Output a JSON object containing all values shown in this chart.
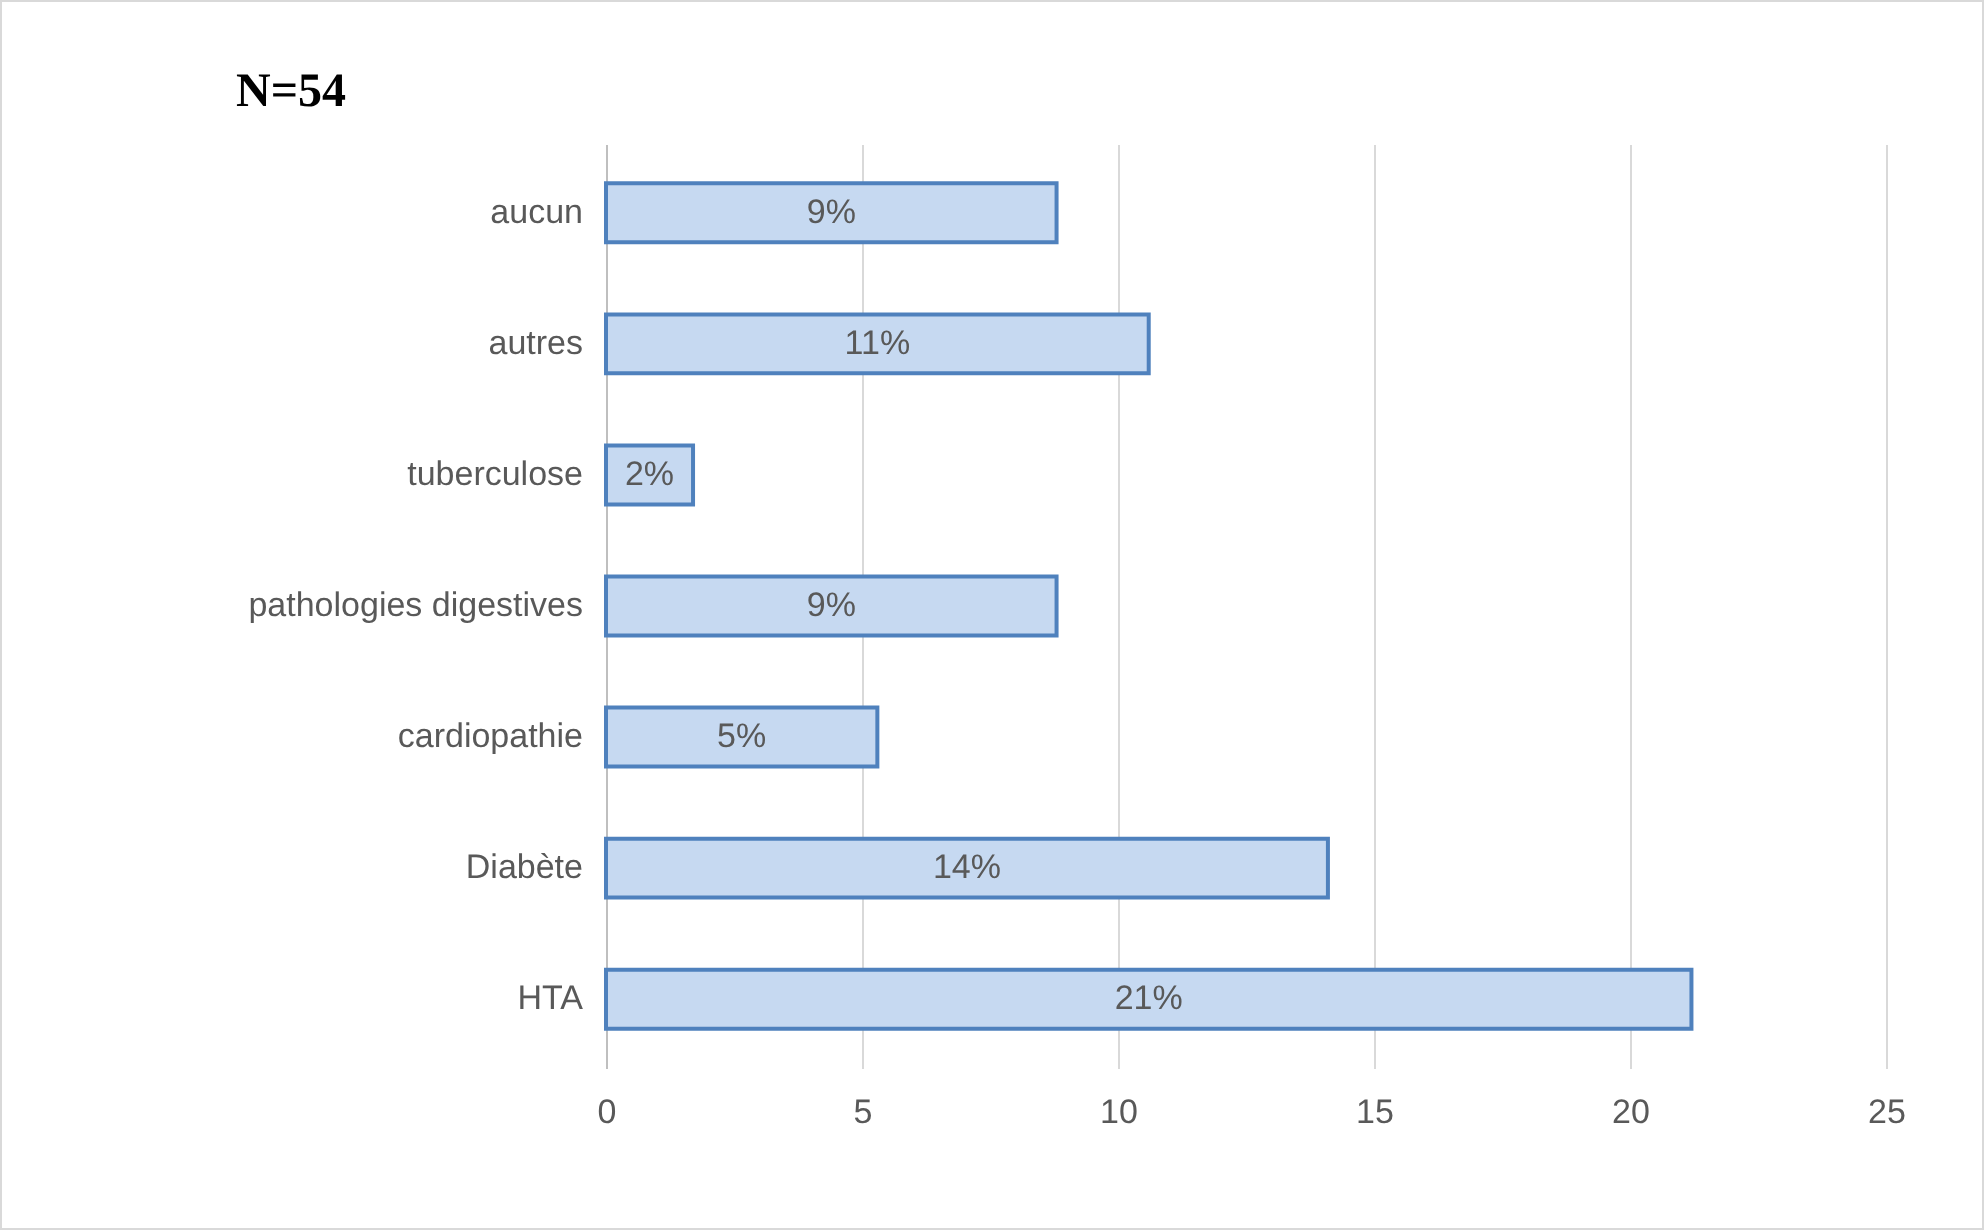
{
  "chart_data": {
    "type": "bar",
    "orientation": "horizontal",
    "title": "N=54",
    "categories": [
      "aucun",
      "autres",
      "tuberculose",
      "pathologies digestives",
      "cardiopathie",
      "Diabète",
      "HTA"
    ],
    "values": [
      8.8,
      10.6,
      1.7,
      8.8,
      5.3,
      14.1,
      21.2
    ],
    "value_labels": [
      "9%",
      "11%",
      "2%",
      "9%",
      "5%",
      "14%",
      "21%"
    ],
    "color": "#c6d9f1",
    "xlim": [
      0,
      25
    ],
    "xticks": [
      0,
      5,
      10,
      15,
      20,
      25
    ],
    "grid": "x"
  }
}
